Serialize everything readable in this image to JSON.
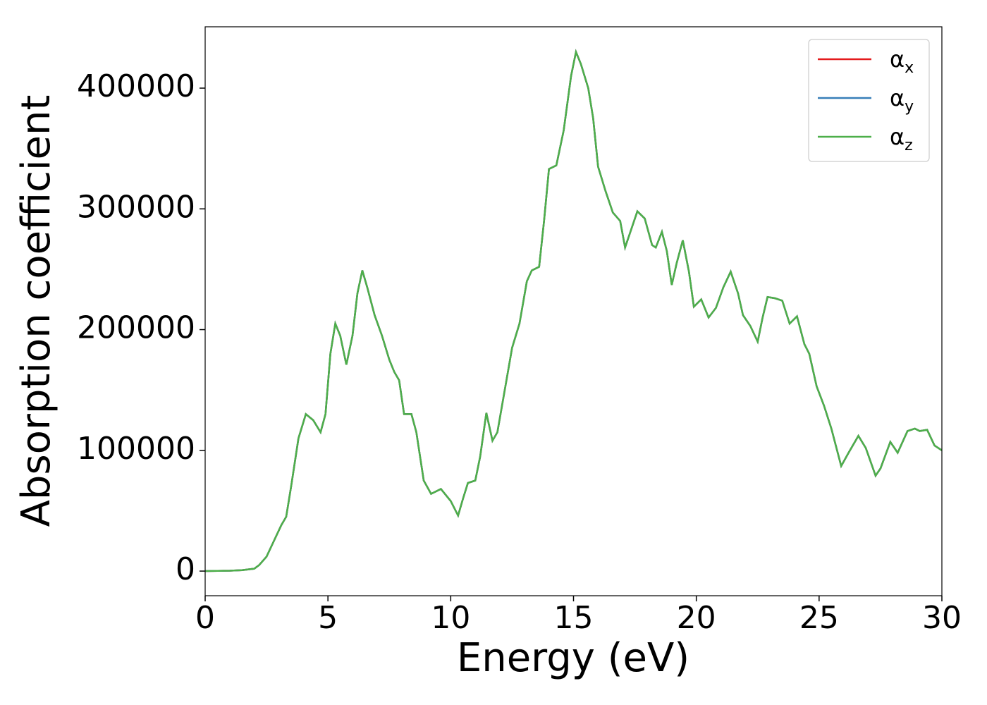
{
  "chart_data": {
    "type": "line",
    "x_label": "Energy (eV)",
    "y_label": "Absorption coefficient",
    "x": [
      0,
      1,
      1.5,
      2,
      2.2,
      2.5,
      2.8,
      3.1,
      3.3,
      3.5,
      3.8,
      4.1,
      4.4,
      4.7,
      4.9,
      5.1,
      5.3,
      5.5,
      5.75,
      6.0,
      6.2,
      6.4,
      6.6,
      6.9,
      7.2,
      7.5,
      7.7,
      7.9,
      8.1,
      8.4,
      8.6,
      8.9,
      9.2,
      9.6,
      10.0,
      10.3,
      10.5,
      10.7,
      11.0,
      11.2,
      11.45,
      11.7,
      11.9,
      12.2,
      12.5,
      12.8,
      13.1,
      13.3,
      13.6,
      13.8,
      14.0,
      14.3,
      14.6,
      14.9,
      15.1,
      15.3,
      15.6,
      15.8,
      16.0,
      16.3,
      16.6,
      16.9,
      17.1,
      17.3,
      17.6,
      17.9,
      18.2,
      18.35,
      18.6,
      18.8,
      19.0,
      19.2,
      19.45,
      19.7,
      19.9,
      20.2,
      20.5,
      20.8,
      21.1,
      21.4,
      21.7,
      21.9,
      22.2,
      22.5,
      22.7,
      22.9,
      23.2,
      23.5,
      23.8,
      24.1,
      24.4,
      24.6,
      24.9,
      25.2,
      25.5,
      25.9,
      26.2,
      26.6,
      26.9,
      27.3,
      27.5,
      27.9,
      28.2,
      28.6,
      28.9,
      29.1,
      29.4,
      29.7,
      30.0
    ],
    "series": [
      {
        "name": "αx",
        "color": "#e41a1c",
        "values": [
          0,
          300,
          800,
          2000,
          5000,
          12000,
          25000,
          38000,
          45000,
          70000,
          110000,
          130000,
          125000,
          115000,
          130000,
          180000,
          205000,
          195000,
          171000,
          195000,
          230000,
          249000,
          235000,
          212000,
          195000,
          175000,
          165000,
          158000,
          130000,
          130000,
          115000,
          75000,
          64000,
          68000,
          58000,
          46000,
          60000,
          73000,
          75000,
          95000,
          131000,
          108000,
          115000,
          150000,
          185000,
          205000,
          240000,
          249000,
          252000,
          290000,
          333000,
          336000,
          365000,
          410000,
          430000,
          420000,
          400000,
          375000,
          335000,
          315000,
          297000,
          290000,
          268000,
          280000,
          298000,
          292000,
          270000,
          268000,
          281000,
          265000,
          237000,
          255000,
          274000,
          248000,
          219000,
          225000,
          210000,
          218000,
          235000,
          248000,
          230000,
          212000,
          203000,
          190000,
          210000,
          227000,
          226000,
          224000,
          205000,
          211000,
          188000,
          180000,
          153000,
          137000,
          118000,
          87000,
          98000,
          112000,
          102000,
          79000,
          85000,
          107000,
          98000,
          116000,
          118000,
          116000,
          117000,
          104000,
          100000
        ]
      },
      {
        "name": "αy",
        "color": "#377eb8",
        "values": [
          0,
          300,
          800,
          2000,
          5000,
          12000,
          25000,
          38000,
          45000,
          70000,
          110000,
          130000,
          125000,
          115000,
          130000,
          180000,
          205000,
          195000,
          171000,
          195000,
          230000,
          249000,
          235000,
          212000,
          195000,
          175000,
          165000,
          158000,
          130000,
          130000,
          115000,
          75000,
          64000,
          68000,
          58000,
          46000,
          60000,
          73000,
          75000,
          95000,
          131000,
          108000,
          115000,
          150000,
          185000,
          205000,
          240000,
          249000,
          252000,
          290000,
          333000,
          336000,
          365000,
          410000,
          430000,
          420000,
          400000,
          375000,
          335000,
          315000,
          297000,
          290000,
          268000,
          280000,
          298000,
          292000,
          270000,
          268000,
          281000,
          265000,
          237000,
          255000,
          274000,
          248000,
          219000,
          225000,
          210000,
          218000,
          235000,
          248000,
          230000,
          212000,
          203000,
          190000,
          210000,
          227000,
          226000,
          224000,
          205000,
          211000,
          188000,
          180000,
          153000,
          137000,
          118000,
          87000,
          98000,
          112000,
          102000,
          79000,
          85000,
          107000,
          98000,
          116000,
          118000,
          116000,
          117000,
          104000,
          100000
        ]
      },
      {
        "name": "αz",
        "color": "#4daf4a",
        "values": [
          0,
          300,
          800,
          2000,
          5000,
          12000,
          25000,
          38000,
          45000,
          70000,
          110000,
          130000,
          125000,
          115000,
          130000,
          180000,
          205000,
          195000,
          171000,
          195000,
          230000,
          249000,
          235000,
          212000,
          195000,
          175000,
          165000,
          158000,
          130000,
          130000,
          115000,
          75000,
          64000,
          68000,
          58000,
          46000,
          60000,
          73000,
          75000,
          95000,
          131000,
          108000,
          115000,
          150000,
          185000,
          205000,
          240000,
          249000,
          252000,
          290000,
          333000,
          336000,
          365000,
          410000,
          430000,
          420000,
          400000,
          375000,
          335000,
          315000,
          297000,
          290000,
          268000,
          280000,
          298000,
          292000,
          270000,
          268000,
          281000,
          265000,
          237000,
          255000,
          274000,
          248000,
          219000,
          225000,
          210000,
          218000,
          235000,
          248000,
          230000,
          212000,
          203000,
          190000,
          210000,
          227000,
          226000,
          224000,
          205000,
          211000,
          188000,
          180000,
          153000,
          137000,
          118000,
          87000,
          98000,
          112000,
          102000,
          79000,
          85000,
          107000,
          98000,
          116000,
          118000,
          116000,
          117000,
          104000,
          100000
        ]
      }
    ],
    "xlim": [
      0,
      30
    ],
    "xticks": [
      0,
      5,
      10,
      15,
      20,
      25,
      30
    ],
    "ylim": [
      -20400,
      450800
    ],
    "yticks": [
      0,
      100000,
      200000,
      300000,
      400000
    ],
    "legend": "upper right",
    "grid": false
  }
}
